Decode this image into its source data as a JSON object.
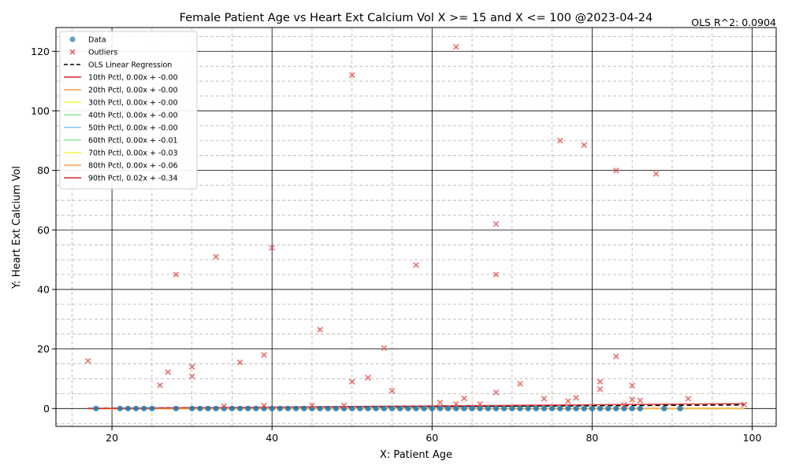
{
  "chart_data": {
    "type": "scatter",
    "title": "Female Patient Age vs Heart Ext Calcium Vol X >= 15 and X <=  100 @2023-04-24",
    "annotation": "OLS R^2: 0.0904",
    "xlabel": "X: Patient Age",
    "ylabel": "Y: Heart Ext Calcium Vol",
    "xlim": [
      13,
      103
    ],
    "ylim": [
      -6,
      128
    ],
    "x_ticks": [
      20,
      40,
      60,
      80,
      100
    ],
    "y_ticks": [
      0,
      20,
      40,
      60,
      80,
      100,
      120
    ],
    "grid": "major solid black, minor dashed gray",
    "legend_position": "top-left",
    "colors": {
      "data": "#1f77b4",
      "outliers": "#e8524f",
      "ols": "#000000"
    },
    "legend": [
      {
        "label": "Data",
        "kind": "point",
        "color": "#1f77b4"
      },
      {
        "label": "Outliers",
        "kind": "x",
        "color": "#e8524f"
      },
      {
        "label": "OLS Linear Regression",
        "kind": "dash",
        "color": "#000000"
      },
      {
        "label": "10th Pctl, 0.00x + -0.00",
        "kind": "line",
        "color": "#d62728"
      },
      {
        "label": "20th Pctl, 0.00x + -0.00",
        "kind": "line",
        "color": "#ff9f4a"
      },
      {
        "label": "30th Pctl, 0.00x + -0.00",
        "kind": "line",
        "color": "#f5f542"
      },
      {
        "label": "40th Pctl, 0.00x + -0.00",
        "kind": "line",
        "color": "#8ee88e"
      },
      {
        "label": "50th Pctl, 0.00x + -0.00",
        "kind": "line",
        "color": "#7ec8ef"
      },
      {
        "label": "60th Pctl, 0.00x + -0.01",
        "kind": "line",
        "color": "#8ee88e"
      },
      {
        "label": "70th Pctl, 0.00x + -0.03",
        "kind": "line",
        "color": "#f5f542"
      },
      {
        "label": "80th Pctl, 0.00x + -0.06",
        "kind": "line",
        "color": "#ff9f4a"
      },
      {
        "label": "90th Pctl, 0.02x + -0.34",
        "kind": "line",
        "color": "#d62728"
      }
    ],
    "series": [
      {
        "name": "Data",
        "x": [
          18,
          21,
          22,
          23,
          24,
          25,
          28,
          30,
          31,
          32,
          33,
          34,
          35,
          36,
          37,
          38,
          39,
          40,
          41,
          42,
          43,
          44,
          45,
          46,
          47,
          48,
          49,
          50,
          51,
          52,
          53,
          54,
          55,
          56,
          57,
          58,
          59,
          60,
          61,
          62,
          63,
          64,
          65,
          66,
          67,
          68,
          69,
          70,
          71,
          72,
          73,
          74,
          75,
          76,
          77,
          78,
          79,
          80,
          81,
          82,
          83,
          84,
          85,
          86,
          89,
          91
        ],
        "y": [
          0,
          0,
          0,
          0,
          0,
          0,
          0,
          0,
          0,
          0,
          0,
          0,
          0,
          0,
          0,
          0,
          0,
          0,
          0,
          0,
          0,
          0,
          0,
          0,
          0,
          0,
          0,
          0,
          0,
          0,
          0,
          0,
          0,
          0,
          0,
          0,
          0,
          0,
          0,
          0,
          0,
          0,
          0,
          0,
          0,
          0,
          0,
          0,
          0,
          0,
          0,
          0,
          0,
          0,
          0,
          0,
          0,
          0,
          0,
          0,
          0,
          0,
          0,
          0,
          0,
          0
        ]
      },
      {
        "name": "Outliers",
        "x": [
          17,
          26,
          27,
          28,
          30,
          30,
          33,
          34,
          36,
          39,
          39,
          40,
          45,
          46,
          49,
          50,
          50,
          52,
          54,
          55,
          58,
          61,
          63,
          63,
          64,
          66,
          68,
          68,
          68,
          71,
          74,
          76,
          77,
          78,
          79,
          81,
          81,
          83,
          83,
          84,
          85,
          85,
          86,
          88,
          92,
          99
        ],
        "y": [
          16,
          7.8,
          12.2,
          45,
          14,
          10.8,
          51,
          0.8,
          15.5,
          18,
          1,
          54,
          1,
          26.5,
          1,
          9,
          112,
          10.4,
          20.3,
          6,
          48.2,
          2,
          1.5,
          121.5,
          3.4,
          1.5,
          5.4,
          62,
          45,
          8.3,
          3.3,
          90,
          2.5,
          3.6,
          88.5,
          9,
          6.5,
          80,
          17.5,
          1.2,
          7.7,
          3,
          2.7,
          78.8,
          3.3,
          1.3
        ]
      },
      {
        "name": "OLS Linear Regression",
        "x": [
          17,
          99
        ],
        "y": [
          0.05,
          1.2
        ]
      },
      {
        "name": "10th Pctl",
        "x": [
          17,
          99
        ],
        "y": [
          0,
          0
        ]
      },
      {
        "name": "20th Pctl",
        "x": [
          17,
          99
        ],
        "y": [
          0,
          0
        ]
      },
      {
        "name": "30th Pctl",
        "x": [
          17,
          99
        ],
        "y": [
          0,
          0
        ]
      },
      {
        "name": "40th Pctl",
        "x": [
          17,
          99
        ],
        "y": [
          0,
          0
        ]
      },
      {
        "name": "50th Pctl",
        "x": [
          17,
          99
        ],
        "y": [
          0,
          0
        ]
      },
      {
        "name": "60th Pctl",
        "x": [
          17,
          99
        ],
        "y": [
          -0.01,
          0.02
        ]
      },
      {
        "name": "70th Pctl",
        "x": [
          17,
          99
        ],
        "y": [
          -0.03,
          0.05
        ]
      },
      {
        "name": "80th Pctl",
        "x": [
          17,
          99
        ],
        "y": [
          -0.06,
          0.1
        ]
      },
      {
        "name": "90th Pctl",
        "x": [
          17,
          99
        ],
        "y": [
          0.0,
          1.64
        ]
      }
    ]
  }
}
